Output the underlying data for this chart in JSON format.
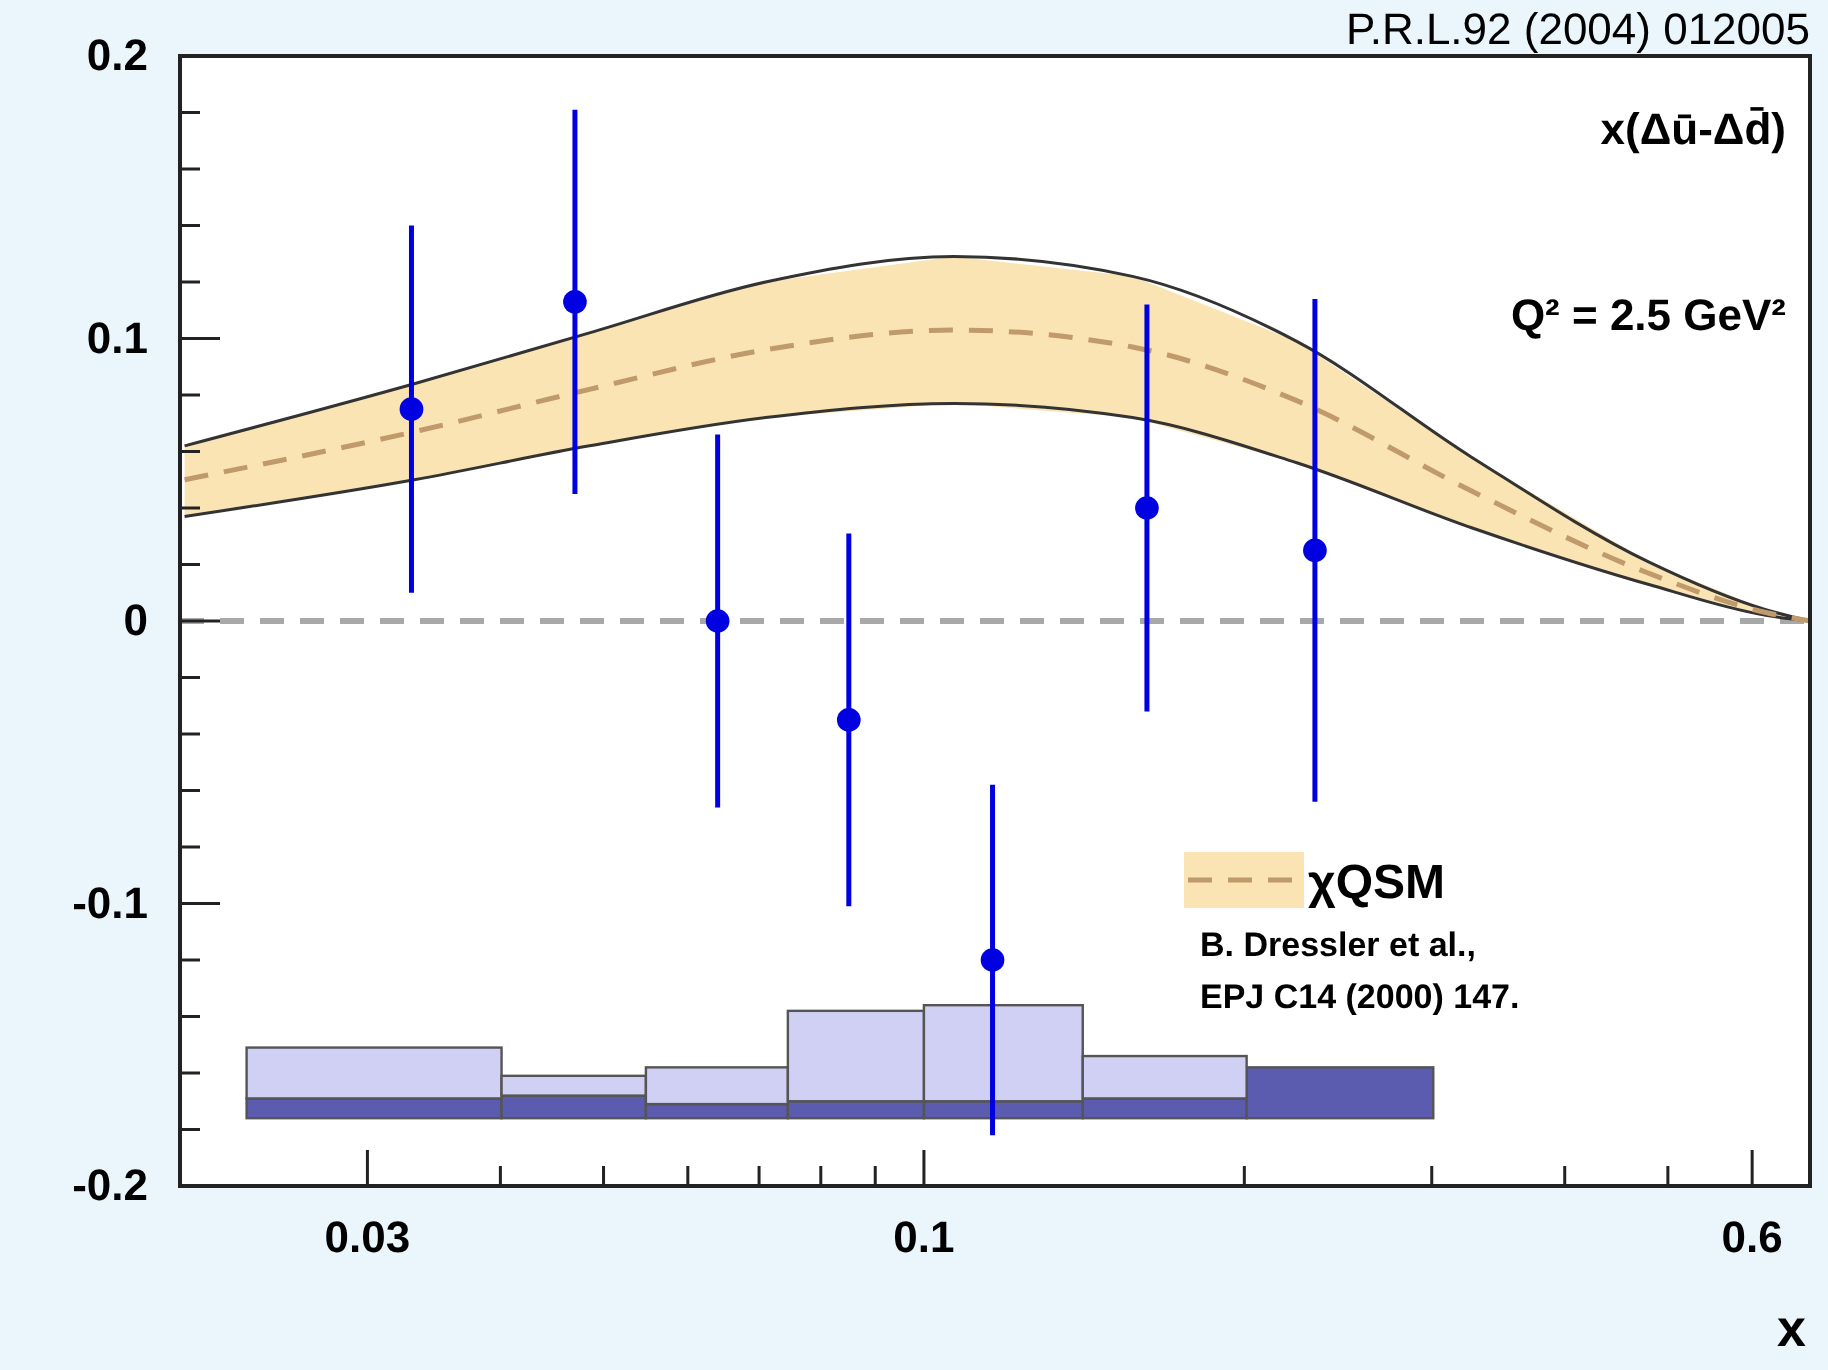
{
  "chart_data": {
    "type": "scatter",
    "title": "P.R.L.92 (2004) 012005",
    "xlabel": "x",
    "annotations": [
      "x(Δū-Δd̄)",
      "Q² = 2.5 GeV²",
      "B. Dressler et al.,",
      "EPJ C14 (2000) 147."
    ],
    "log": "x",
    "xlim": [
      0.02,
      0.68
    ],
    "ylim": [
      -0.2,
      0.2
    ],
    "xticks": [
      0.03,
      {
        "value": 0.04,
        "label": null
      },
      {
        "value": 0.05,
        "label": null
      },
      {
        "value": 0.06,
        "label": null
      },
      {
        "value": 0.07,
        "label": null
      },
      {
        "value": 0.08,
        "label": null
      },
      {
        "value": 0.09,
        "label": null
      },
      0.1,
      {
        "value": 0.2,
        "label": null
      },
      {
        "value": 0.3,
        "label": null
      },
      {
        "value": 0.4,
        "label": null
      },
      {
        "value": 0.5,
        "label": null
      },
      0.6
    ],
    "yticks": [
      -0.2,
      {
        "value": -0.18,
        "label": null
      },
      {
        "value": -0.16,
        "label": null
      },
      {
        "value": -0.14,
        "label": null
      },
      {
        "value": -0.12,
        "label": null
      },
      -0.1,
      {
        "value": -0.08,
        "label": null
      },
      {
        "value": -0.06,
        "label": null
      },
      {
        "value": -0.04,
        "label": null
      },
      {
        "value": -0.02,
        "label": null
      },
      0,
      {
        "value": 0.02,
        "label": null
      },
      {
        "value": 0.04,
        "label": null
      },
      {
        "value": 0.06,
        "label": null
      },
      {
        "value": 0.08,
        "label": null
      },
      0.1,
      {
        "value": 0.12,
        "label": null
      },
      {
        "value": 0.14,
        "label": null
      },
      {
        "value": 0.16,
        "label": null
      },
      {
        "value": 0.18,
        "label": null
      },
      0.2
    ],
    "ref_lines": [
      {
        "axis": "y",
        "value": 0,
        "color": "#a8a8a8",
        "line_style": "dashed"
      }
    ],
    "legend": "right",
    "series": [
      {
        "type": "histogram",
        "color": "#5b5bb0",
        "bins": [
          0.0231,
          0.0401,
          0.0548,
          0.0745,
          0.1,
          0.141,
          0.201,
          0.301
        ],
        "base": [
          -0.176,
          -0.176,
          -0.176,
          -0.176,
          -0.176,
          -0.176,
          -0.176
        ],
        "values": [
          0.007,
          0.008,
          0.005,
          0.006,
          0.006,
          0.007,
          0.018
        ]
      },
      {
        "type": "histogram",
        "color": "#d0d0f4",
        "bins": [
          0.0231,
          0.0401,
          0.0548,
          0.0745,
          0.1,
          0.141,
          0.201
        ],
        "base": [
          -0.169,
          -0.168,
          -0.171,
          -0.17,
          -0.17,
          -0.169
        ],
        "values": [
          0.018,
          0.007,
          0.013,
          0.032,
          0.034,
          0.015
        ]
      },
      {
        "type": "line",
        "color": "#333333",
        "line_style": "solid",
        "x": [
          0.0202,
          0.0332,
          0.0485,
          0.071,
          0.1067,
          0.157,
          0.224,
          0.327,
          0.479,
          0.618,
          0.68
        ],
        "values": [
          0.037,
          0.05,
          0.062,
          0.072,
          0.077,
          0.072,
          0.056,
          0.033,
          0.013,
          0.002,
          0
        ]
      },
      {
        "type": "line",
        "color": "#333333",
        "line_style": "solid",
        "x": [
          0.0202,
          0.0332,
          0.0485,
          0.071,
          0.1067,
          0.157,
          0.224,
          0.327,
          0.479,
          0.618,
          0.68
        ],
        "values": [
          0.062,
          0.084,
          0.102,
          0.12,
          0.129,
          0.122,
          0.099,
          0.058,
          0.021,
          0.004,
          0
        ]
      },
      {
        "type": "line",
        "name": "χQSM",
        "color": "#c09a6a",
        "line_style": "dashed",
        "x": [
          0.0202,
          0.0332,
          0.0485,
          0.071,
          0.1067,
          0.157,
          0.224,
          0.327,
          0.479,
          0.618,
          0.68
        ],
        "values": [
          0.05,
          0.067,
          0.082,
          0.096,
          0.103,
          0.097,
          0.078,
          0.046,
          0.017,
          0.003,
          0
        ],
        "lower": [
          0.037,
          0.05,
          0.062,
          0.072,
          0.077,
          0.072,
          0.056,
          0.033,
          0.013,
          0.002,
          0
        ],
        "upper": [
          0.062,
          0.084,
          0.102,
          0.12,
          0.129,
          0.122,
          0.099,
          0.058,
          0.021,
          0.004,
          0
        ]
      },
      {
        "marker": "circle",
        "color": "#0000e0",
        "x": [
          0.033,
          0.047,
          0.064,
          0.085,
          0.116,
          0.162,
          0.233
        ],
        "values": [
          0.075,
          0.113,
          0,
          -0.035,
          -0.12,
          0.04,
          0.025
        ],
        "errors": [
          0.065,
          0.068,
          0.066,
          0.066,
          0.062,
          0.072,
          0.089
        ]
      }
    ]
  }
}
